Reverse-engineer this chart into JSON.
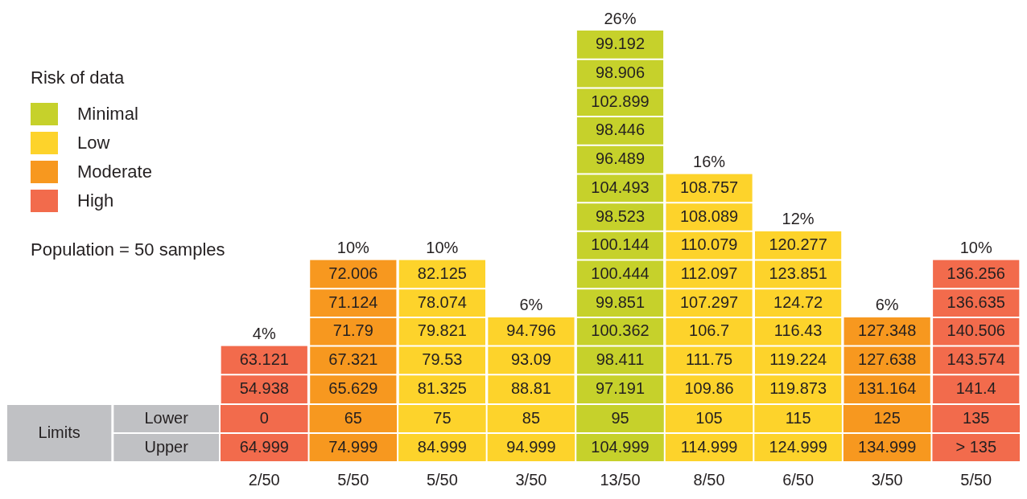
{
  "chart_data": {
    "type": "bar",
    "stacked": true,
    "legend": "top left",
    "legend_title": "Risk of data",
    "categories": [
      "0",
      "65",
      "75",
      "85",
      "95",
      "105",
      "115",
      "125",
      "135"
    ],
    "series": [
      {
        "name": "Minimal",
        "color": "#c6d12b",
        "values": [
          null,
          null,
          null,
          null,
          26,
          null,
          null,
          null,
          null
        ],
        "value_labels": [
          null,
          null,
          null,
          null,
          "26%",
          null,
          null,
          null,
          null
        ]
      },
      {
        "name": "Low",
        "color": "#fdd32b",
        "values": [
          null,
          null,
          10,
          6,
          null,
          16,
          12,
          null,
          null
        ],
        "value_labels": [
          null,
          null,
          "10%",
          "6%",
          null,
          "16%",
          "12%",
          null,
          null
        ]
      },
      {
        "name": "Moderate",
        "color": "#f7981f",
        "values": [
          null,
          10,
          null,
          null,
          null,
          null,
          null,
          6,
          null
        ],
        "value_labels": [
          null,
          "10%",
          null,
          null,
          null,
          null,
          null,
          "6%",
          null
        ]
      },
      {
        "name": "High",
        "color": "#f26b4c",
        "values": [
          4,
          null,
          null,
          null,
          null,
          null,
          null,
          null,
          10
        ],
        "value_labels": [
          "4%",
          null,
          null,
          null,
          null,
          null,
          null,
          null,
          "10%"
        ]
      }
    ],
    "annotations": [
      "Population = 50 samples",
      "Limits",
      "Lower",
      "Upper",
      "64.999",
      "74.999",
      "84.999",
      "94.999",
      "104.999",
      "114.999",
      "124.999",
      "134.999",
      "> 135",
      "2/50",
      "5/50",
      "5/50",
      "3/50",
      "13/50",
      "8/50",
      "6/50",
      "3/50",
      "5/50",
      "54.938",
      "63.121",
      "65.629",
      "67.321",
      "71.79",
      "71.124",
      "72.006",
      "81.325",
      "79.53",
      "79.821",
      "78.074",
      "82.125",
      "88.81",
      "93.09",
      "94.796",
      "97.191",
      "98.411",
      "100.362",
      "99.851",
      "100.444",
      "100.144",
      "98.523",
      "104.493",
      "96.489",
      "98.446",
      "102.899",
      "98.906",
      "99.192",
      "109.86",
      "111.75",
      "106.7",
      "107.297",
      "112.097",
      "110.079",
      "108.089",
      "108.757",
      "119.873",
      "119.224",
      "116.43",
      "124.72",
      "123.851",
      "120.277",
      "131.164",
      "127.638",
      "127.348",
      "141.4",
      "143.574",
      "140.506",
      "136.635",
      "136.256"
    ]
  }
}
